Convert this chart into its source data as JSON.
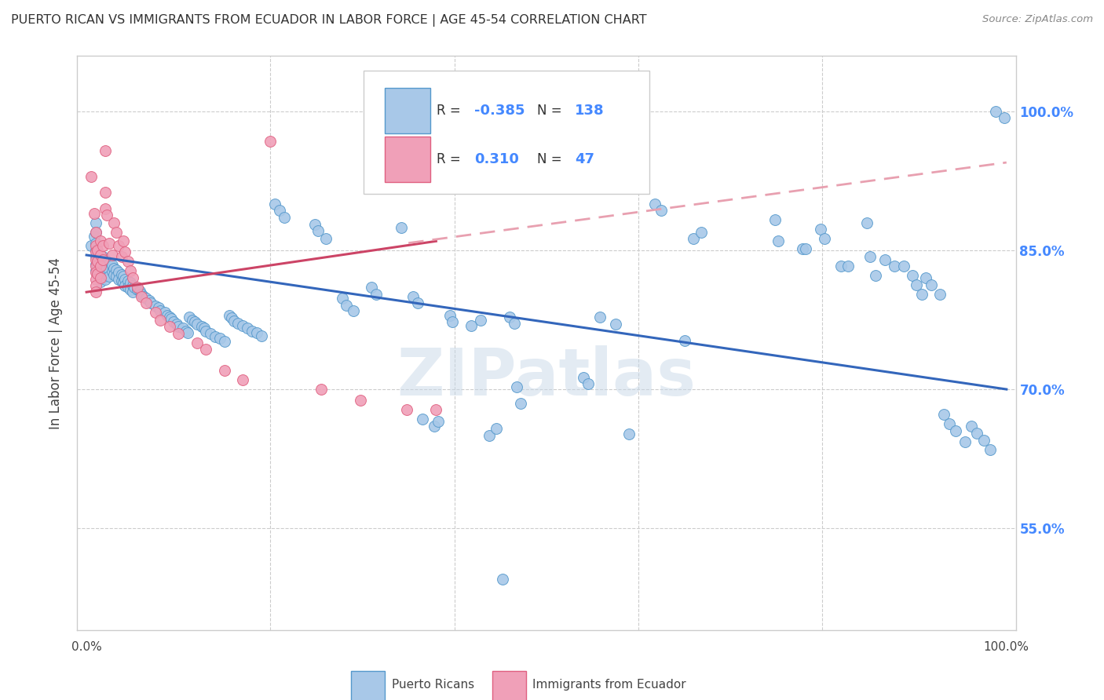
{
  "title": "PUERTO RICAN VS IMMIGRANTS FROM ECUADOR IN LABOR FORCE | AGE 45-54 CORRELATION CHART",
  "source": "Source: ZipAtlas.com",
  "ylabel": "In Labor Force | Age 45-54",
  "ytick_labels": [
    "55.0%",
    "70.0%",
    "85.0%",
    "100.0%"
  ],
  "ytick_values": [
    0.55,
    0.7,
    0.85,
    1.0
  ],
  "xlim": [
    -0.01,
    1.01
  ],
  "ylim": [
    0.44,
    1.06
  ],
  "legend_blue_r": "-0.385",
  "legend_blue_n": "138",
  "legend_pink_r": "0.310",
  "legend_pink_n": "47",
  "blue_fill": "#a8c8e8",
  "pink_fill": "#f0a0b8",
  "blue_edge": "#5599cc",
  "pink_edge": "#e06080",
  "trendline_blue": "#3366bb",
  "trendline_pink_solid": "#cc4466",
  "trendline_pink_dashed": "#e8a0b0",
  "watermark": "ZIPatlas",
  "blue_trend": [
    0.0,
    0.845,
    1.0,
    0.7
  ],
  "pink_trend_solid": [
    0.0,
    0.805,
    0.38,
    0.86
  ],
  "pink_trend_dashed": [
    0.35,
    0.858,
    1.0,
    0.945
  ],
  "blue_points": [
    [
      0.005,
      0.855
    ],
    [
      0.008,
      0.865
    ],
    [
      0.01,
      0.88
    ],
    [
      0.01,
      0.87
    ],
    [
      0.01,
      0.858
    ],
    [
      0.01,
      0.85
    ],
    [
      0.01,
      0.843
    ],
    [
      0.01,
      0.835
    ],
    [
      0.01,
      0.828
    ],
    [
      0.012,
      0.848
    ],
    [
      0.012,
      0.84
    ],
    [
      0.012,
      0.833
    ],
    [
      0.012,
      0.825
    ],
    [
      0.015,
      0.845
    ],
    [
      0.015,
      0.838
    ],
    [
      0.015,
      0.83
    ],
    [
      0.015,
      0.823
    ],
    [
      0.015,
      0.816
    ],
    [
      0.018,
      0.843
    ],
    [
      0.018,
      0.836
    ],
    [
      0.018,
      0.828
    ],
    [
      0.018,
      0.821
    ],
    [
      0.02,
      0.84
    ],
    [
      0.02,
      0.833
    ],
    [
      0.02,
      0.826
    ],
    [
      0.02,
      0.819
    ],
    [
      0.022,
      0.838
    ],
    [
      0.022,
      0.831
    ],
    [
      0.022,
      0.824
    ],
    [
      0.025,
      0.836
    ],
    [
      0.025,
      0.829
    ],
    [
      0.025,
      0.822
    ],
    [
      0.028,
      0.834
    ],
    [
      0.028,
      0.827
    ],
    [
      0.03,
      0.831
    ],
    [
      0.03,
      0.824
    ],
    [
      0.032,
      0.829
    ],
    [
      0.032,
      0.822
    ],
    [
      0.035,
      0.826
    ],
    [
      0.035,
      0.819
    ],
    [
      0.038,
      0.824
    ],
    [
      0.038,
      0.817
    ],
    [
      0.04,
      0.822
    ],
    [
      0.04,
      0.815
    ],
    [
      0.042,
      0.819
    ],
    [
      0.042,
      0.812
    ],
    [
      0.045,
      0.817
    ],
    [
      0.045,
      0.81
    ],
    [
      0.048,
      0.815
    ],
    [
      0.048,
      0.808
    ],
    [
      0.05,
      0.812
    ],
    [
      0.05,
      0.805
    ],
    [
      0.052,
      0.81
    ],
    [
      0.055,
      0.808
    ],
    [
      0.058,
      0.806
    ],
    [
      0.06,
      0.803
    ],
    [
      0.062,
      0.8
    ],
    [
      0.065,
      0.798
    ],
    [
      0.068,
      0.796
    ],
    [
      0.07,
      0.793
    ],
    [
      0.075,
      0.79
    ],
    [
      0.078,
      0.788
    ],
    [
      0.08,
      0.785
    ],
    [
      0.085,
      0.783
    ],
    [
      0.088,
      0.78
    ],
    [
      0.09,
      0.778
    ],
    [
      0.092,
      0.776
    ],
    [
      0.095,
      0.773
    ],
    [
      0.098,
      0.77
    ],
    [
      0.1,
      0.768
    ],
    [
      0.105,
      0.766
    ],
    [
      0.108,
      0.763
    ],
    [
      0.11,
      0.761
    ],
    [
      0.112,
      0.778
    ],
    [
      0.115,
      0.775
    ],
    [
      0.118,
      0.773
    ],
    [
      0.12,
      0.77
    ],
    [
      0.125,
      0.768
    ],
    [
      0.128,
      0.766
    ],
    [
      0.13,
      0.763
    ],
    [
      0.135,
      0.76
    ],
    [
      0.14,
      0.757
    ],
    [
      0.145,
      0.755
    ],
    [
      0.15,
      0.752
    ],
    [
      0.155,
      0.78
    ],
    [
      0.158,
      0.777
    ],
    [
      0.16,
      0.774
    ],
    [
      0.165,
      0.771
    ],
    [
      0.17,
      0.769
    ],
    [
      0.175,
      0.766
    ],
    [
      0.18,
      0.763
    ],
    [
      0.185,
      0.761
    ],
    [
      0.19,
      0.758
    ],
    [
      0.205,
      0.9
    ],
    [
      0.21,
      0.893
    ],
    [
      0.215,
      0.886
    ],
    [
      0.248,
      0.878
    ],
    [
      0.252,
      0.871
    ],
    [
      0.26,
      0.863
    ],
    [
      0.278,
      0.798
    ],
    [
      0.282,
      0.791
    ],
    [
      0.29,
      0.785
    ],
    [
      0.31,
      0.81
    ],
    [
      0.315,
      0.803
    ],
    [
      0.338,
      0.998
    ],
    [
      0.342,
      0.875
    ],
    [
      0.355,
      0.8
    ],
    [
      0.36,
      0.793
    ],
    [
      0.365,
      0.668
    ],
    [
      0.378,
      0.66
    ],
    [
      0.382,
      0.665
    ],
    [
      0.395,
      0.78
    ],
    [
      0.398,
      0.773
    ],
    [
      0.418,
      0.769
    ],
    [
      0.428,
      0.775
    ],
    [
      0.438,
      0.65
    ],
    [
      0.445,
      0.658
    ],
    [
      0.452,
      0.495
    ],
    [
      0.46,
      0.778
    ],
    [
      0.465,
      0.771
    ],
    [
      0.468,
      0.703
    ],
    [
      0.472,
      0.685
    ],
    [
      0.54,
      0.713
    ],
    [
      0.545,
      0.706
    ],
    [
      0.558,
      0.778
    ],
    [
      0.575,
      0.77
    ],
    [
      0.59,
      0.652
    ],
    [
      0.618,
      0.9
    ],
    [
      0.625,
      0.893
    ],
    [
      0.65,
      0.753
    ],
    [
      0.66,
      0.863
    ],
    [
      0.668,
      0.87
    ],
    [
      0.748,
      0.883
    ],
    [
      0.752,
      0.86
    ],
    [
      0.778,
      0.852
    ],
    [
      0.782,
      0.852
    ],
    [
      0.798,
      0.873
    ],
    [
      0.802,
      0.863
    ],
    [
      0.82,
      0.833
    ],
    [
      0.828,
      0.833
    ],
    [
      0.848,
      0.88
    ],
    [
      0.852,
      0.843
    ],
    [
      0.858,
      0.823
    ],
    [
      0.868,
      0.84
    ],
    [
      0.878,
      0.833
    ],
    [
      0.888,
      0.833
    ],
    [
      0.898,
      0.823
    ],
    [
      0.902,
      0.813
    ],
    [
      0.908,
      0.803
    ],
    [
      0.912,
      0.82
    ],
    [
      0.918,
      0.813
    ],
    [
      0.928,
      0.803
    ],
    [
      0.932,
      0.673
    ],
    [
      0.938,
      0.663
    ],
    [
      0.945,
      0.655
    ],
    [
      0.955,
      0.643
    ],
    [
      0.962,
      0.66
    ],
    [
      0.968,
      0.653
    ],
    [
      0.975,
      0.645
    ],
    [
      0.982,
      0.635
    ],
    [
      0.988,
      1.0
    ],
    [
      0.998,
      0.993
    ]
  ],
  "pink_points": [
    [
      0.005,
      0.93
    ],
    [
      0.008,
      0.89
    ],
    [
      0.01,
      0.87
    ],
    [
      0.01,
      0.855
    ],
    [
      0.01,
      0.848
    ],
    [
      0.01,
      0.84
    ],
    [
      0.01,
      0.833
    ],
    [
      0.01,
      0.826
    ],
    [
      0.01,
      0.819
    ],
    [
      0.01,
      0.812
    ],
    [
      0.01,
      0.805
    ],
    [
      0.012,
      0.85
    ],
    [
      0.012,
      0.838
    ],
    [
      0.012,
      0.825
    ],
    [
      0.015,
      0.86
    ],
    [
      0.015,
      0.845
    ],
    [
      0.015,
      0.833
    ],
    [
      0.015,
      0.82
    ],
    [
      0.018,
      0.855
    ],
    [
      0.018,
      0.84
    ],
    [
      0.02,
      0.958
    ],
    [
      0.02,
      0.913
    ],
    [
      0.02,
      0.895
    ],
    [
      0.022,
      0.888
    ],
    [
      0.025,
      0.858
    ],
    [
      0.028,
      0.845
    ],
    [
      0.03,
      0.88
    ],
    [
      0.032,
      0.87
    ],
    [
      0.035,
      0.855
    ],
    [
      0.038,
      0.843
    ],
    [
      0.04,
      0.86
    ],
    [
      0.042,
      0.848
    ],
    [
      0.045,
      0.838
    ],
    [
      0.048,
      0.828
    ],
    [
      0.05,
      0.82
    ],
    [
      0.055,
      0.81
    ],
    [
      0.06,
      0.8
    ],
    [
      0.065,
      0.793
    ],
    [
      0.075,
      0.783
    ],
    [
      0.08,
      0.775
    ],
    [
      0.09,
      0.768
    ],
    [
      0.1,
      0.76
    ],
    [
      0.12,
      0.75
    ],
    [
      0.13,
      0.743
    ],
    [
      0.15,
      0.72
    ],
    [
      0.17,
      0.71
    ],
    [
      0.2,
      0.968
    ],
    [
      0.255,
      0.7
    ],
    [
      0.298,
      0.688
    ],
    [
      0.348,
      0.678
    ],
    [
      0.38,
      0.678
    ]
  ]
}
